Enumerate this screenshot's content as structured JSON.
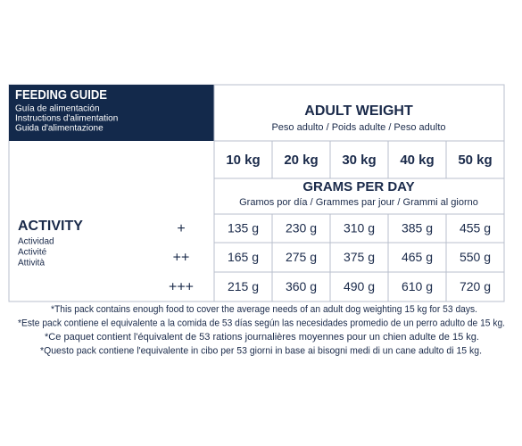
{
  "header": {
    "title": "FEEDING GUIDE",
    "subtitles": [
      "Guía de alimentación",
      "Instructions d'alimentation",
      "Guida d'alimentazione"
    ]
  },
  "weight_header": {
    "title": "ADULT WEIGHT",
    "subtitle": "Peso adulto / Poids adulte / Peso adulto"
  },
  "weights": [
    "10 kg",
    "20 kg",
    "30 kg",
    "40 kg",
    "50 kg"
  ],
  "grams_header": {
    "title": "GRAMS PER DAY",
    "subtitle": "Gramos por día / Grammes par jour / Grammi al giorno"
  },
  "activity": {
    "title": "ACTIVITY",
    "subtitles": [
      "Actividad",
      "Activité",
      "Attività"
    ]
  },
  "rows": [
    {
      "level": "+",
      "values": [
        "135 g",
        "230 g",
        "310 g",
        "385 g",
        "455 g"
      ]
    },
    {
      "level": "++",
      "values": [
        "165 g",
        "275 g",
        "375 g",
        "465 g",
        "550 g"
      ]
    },
    {
      "level": "+++",
      "values": [
        "215 g",
        "360 g",
        "490 g",
        "610 g",
        "720 g"
      ]
    }
  ],
  "footnotes": [
    "*This pack contains enough food to cover the average needs of an adult dog weighting 15 kg for 53 days.",
    "*Este pack contiene el equivalente a la comida de 53 días según las necesidades promedio de un perro adulto de 15 kg.",
    "*Ce paquet contient l'équivalent de 53 rations journalières moyennes pour un chien adulte de 15 kg.",
    "*Questo pack contiene l'equivalente in cibo per 53 giorni in base ai bisogni medi di un cane adulto di 15 kg."
  ]
}
